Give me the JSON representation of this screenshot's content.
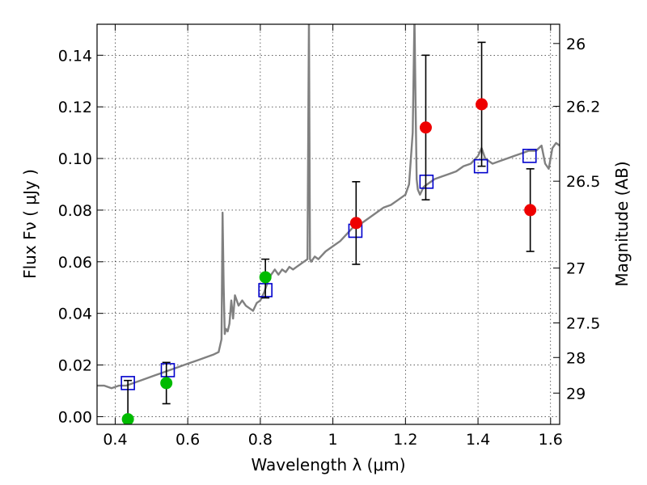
{
  "chart_data": {
    "type": "scatter",
    "xlabel": "Wavelength  λ (μm)",
    "ylabel": "Flux  Fν  ( μJy )",
    "ylabel_right": "Magnitude (AB)",
    "xlim": [
      0.35,
      1.625
    ],
    "ylim": [
      -0.003,
      0.152
    ],
    "grid": true,
    "x_ticks": [
      {
        "value": 0.4,
        "label": "0.4"
      },
      {
        "value": 0.6,
        "label": "0.6"
      },
      {
        "value": 0.8,
        "label": "0.8"
      },
      {
        "value": 1.0,
        "label": "1"
      },
      {
        "value": 1.2,
        "label": "1.2"
      },
      {
        "value": 1.4,
        "label": "1.4"
      },
      {
        "value": 1.6,
        "label": "1.6"
      }
    ],
    "y_ticks": [
      {
        "value": 0.0,
        "label": "0.00"
      },
      {
        "value": 0.02,
        "label": "0.02"
      },
      {
        "value": 0.04,
        "label": "0.04"
      },
      {
        "value": 0.06,
        "label": "0.06"
      },
      {
        "value": 0.08,
        "label": "0.08"
      },
      {
        "value": 0.1,
        "label": "0.10"
      },
      {
        "value": 0.12,
        "label": "0.12"
      },
      {
        "value": 0.14,
        "label": "0.14"
      }
    ],
    "right_ticks": [
      {
        "mag": 26,
        "label": "26"
      },
      {
        "mag": 26.2,
        "label": "26.2"
      },
      {
        "mag": 26.5,
        "label": "26.5"
      },
      {
        "mag": 27,
        "label": "27"
      },
      {
        "mag": 27.5,
        "label": "27.5"
      },
      {
        "mag": 28,
        "label": "28"
      },
      {
        "mag": 29,
        "label": "29"
      }
    ],
    "model_spectrum": {
      "color": "#808080",
      "x": [
        0.35,
        0.37,
        0.39,
        0.41,
        0.43,
        0.45,
        0.47,
        0.49,
        0.51,
        0.53,
        0.55,
        0.57,
        0.59,
        0.61,
        0.63,
        0.65,
        0.67,
        0.685,
        0.693,
        0.696,
        0.699,
        0.702,
        0.705,
        0.71,
        0.715,
        0.72,
        0.725,
        0.73,
        0.74,
        0.75,
        0.76,
        0.77,
        0.78,
        0.79,
        0.8,
        0.81,
        0.82,
        0.83,
        0.84,
        0.85,
        0.86,
        0.87,
        0.88,
        0.89,
        0.9,
        0.91,
        0.92,
        0.93,
        0.934,
        0.937,
        0.94,
        0.95,
        0.96,
        0.98,
        1.0,
        1.02,
        1.04,
        1.06,
        1.08,
        1.1,
        1.12,
        1.14,
        1.16,
        1.18,
        1.2,
        1.21,
        1.22,
        1.225,
        1.228,
        1.231,
        1.234,
        1.24,
        1.25,
        1.26,
        1.28,
        1.3,
        1.32,
        1.34,
        1.36,
        1.38,
        1.4,
        1.41,
        1.42,
        1.44,
        1.46,
        1.48,
        1.5,
        1.52,
        1.54,
        1.56,
        1.575,
        1.585,
        1.595,
        1.605,
        1.615,
        1.625
      ],
      "y": [
        0.012,
        0.012,
        0.011,
        0.012,
        0.012,
        0.013,
        0.014,
        0.015,
        0.016,
        0.017,
        0.018,
        0.019,
        0.02,
        0.021,
        0.022,
        0.023,
        0.024,
        0.025,
        0.03,
        0.079,
        0.05,
        0.032,
        0.034,
        0.033,
        0.036,
        0.045,
        0.038,
        0.047,
        0.043,
        0.045,
        0.043,
        0.042,
        0.041,
        0.044,
        0.045,
        0.048,
        0.052,
        0.055,
        0.057,
        0.055,
        0.057,
        0.056,
        0.058,
        0.057,
        0.058,
        0.059,
        0.06,
        0.061,
        0.155,
        0.061,
        0.06,
        0.062,
        0.061,
        0.064,
        0.066,
        0.068,
        0.071,
        0.074,
        0.075,
        0.077,
        0.079,
        0.081,
        0.082,
        0.084,
        0.086,
        0.09,
        0.11,
        0.155,
        0.12,
        0.092,
        0.088,
        0.086,
        0.089,
        0.09,
        0.092,
        0.093,
        0.094,
        0.095,
        0.097,
        0.098,
        0.101,
        0.104,
        0.1,
        0.098,
        0.099,
        0.1,
        0.101,
        0.102,
        0.103,
        0.103,
        0.105,
        0.098,
        0.096,
        0.104,
        0.106,
        0.105
      ]
    },
    "model_photometry": {
      "marker": "open-square",
      "color": "#0000cc",
      "points": [
        {
          "x": 0.435,
          "y": 0.013
        },
        {
          "x": 0.545,
          "y": 0.018
        },
        {
          "x": 0.814,
          "y": 0.049
        },
        {
          "x": 1.062,
          "y": 0.072
        },
        {
          "x": 1.258,
          "y": 0.091
        },
        {
          "x": 1.408,
          "y": 0.097
        },
        {
          "x": 1.542,
          "y": 0.101
        }
      ]
    },
    "observed_detections": {
      "marker": "filled-circle",
      "color": "#00bb00",
      "points": [
        {
          "x": 0.435,
          "y": -0.001,
          "yerr_low": -0.003,
          "yerr_high": 0.014
        },
        {
          "x": 0.541,
          "y": 0.013,
          "yerr_low": 0.005,
          "yerr_high": 0.021
        },
        {
          "x": 0.814,
          "y": 0.054,
          "yerr_low": 0.046,
          "yerr_high": 0.061
        }
      ]
    },
    "observed_other": {
      "marker": "filled-circle",
      "color": "#ee0000",
      "points": [
        {
          "x": 1.064,
          "y": 0.075,
          "yerr_low": 0.059,
          "yerr_high": 0.091
        },
        {
          "x": 1.256,
          "y": 0.112,
          "yerr_low": 0.084,
          "yerr_high": 0.14
        },
        {
          "x": 1.41,
          "y": 0.121,
          "yerr_low": 0.097,
          "yerr_high": 0.145
        },
        {
          "x": 1.544,
          "y": 0.08,
          "yerr_low": 0.064,
          "yerr_high": 0.096
        }
      ]
    }
  }
}
